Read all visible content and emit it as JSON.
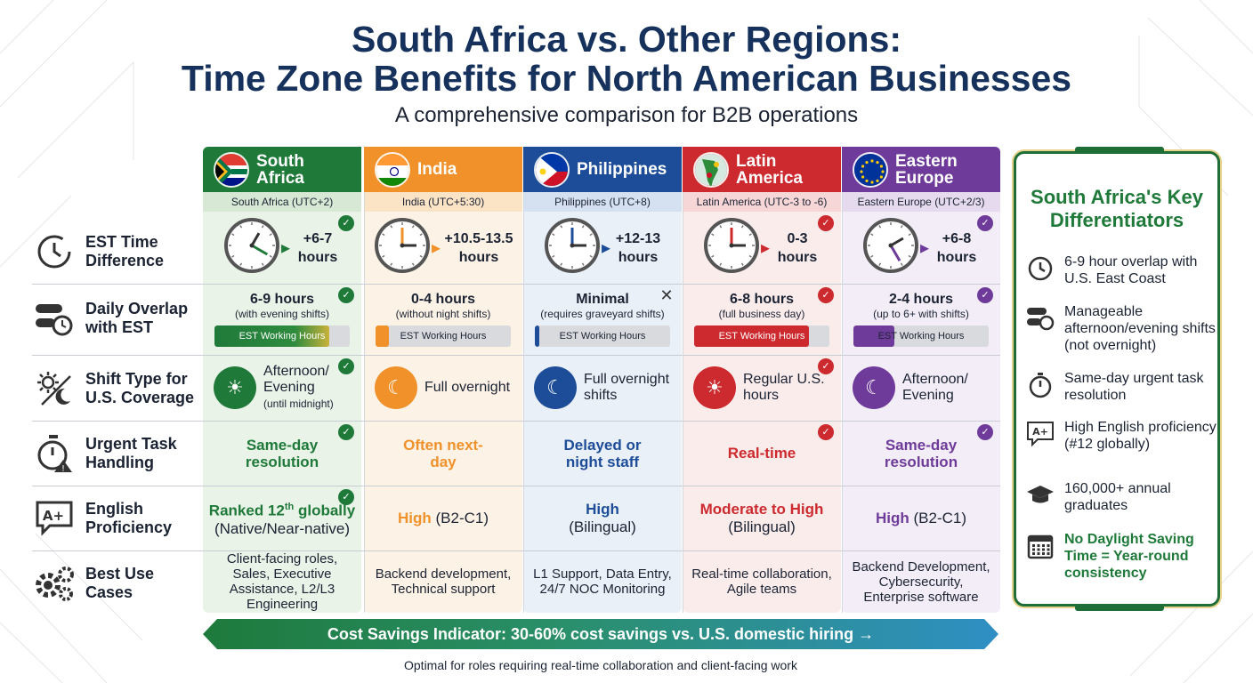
{
  "title_line1": "South Africa vs. Other Regions:",
  "title_line2": "Time Zone Benefits for North American Businesses",
  "subtitle": "A comprehensive comparison for B2B operations",
  "rows": {
    "est": "EST Time Difference",
    "overlap": "Daily Overlap with EST",
    "shift": "Shift Type for U.S. Coverage",
    "urgent": "Urgent Task Handling",
    "english": "English Proficiency",
    "usecases": "Best Use Cases"
  },
  "regions": [
    {
      "name": "South Africa",
      "sub": "South Africa (UTC+2)",
      "color": "#1f7a3a",
      "light": "#eaf3e8",
      "est": "+6-7 hours",
      "overlap_main": "6-9 hours",
      "overlap_note": "(with evening shifts)",
      "bar_label": "EST Working Hours",
      "bar_fill": 0.85,
      "shift_main": "Afternoon/ Evening",
      "shift_note": "(until midnight)",
      "urgent": "Same-day resolution",
      "english_main": "Ranked 12",
      "english_sup": "th",
      "english_tail": " globally",
      "english_note": "(Native/Near-native)",
      "usecases": "Client-facing roles, Sales, Executive Assistance, L2/L3 Engineering",
      "status": "check"
    },
    {
      "name": "India",
      "sub": "India (UTC+5:30)",
      "color": "#f0912a",
      "light": "#fdf2e6",
      "est": "+10.5-13.5 hours",
      "overlap_main": "0-4 hours",
      "overlap_note": "(without night shifts)",
      "bar_label": "EST Working Hours",
      "bar_fill": 0.1,
      "shift_main": "Full overnight",
      "shift_note": "",
      "urgent": "Often next-day",
      "english_main": "High",
      "english_tail": " (B2-C1)",
      "english_note": "",
      "usecases": "Backend development, Technical support",
      "status": "none"
    },
    {
      "name": "Philippines",
      "sub": "Philippines (UTC+8)",
      "color": "#1d4d98",
      "light": "#eaf0f8",
      "est": "+12-13 hours",
      "overlap_main": "Minimal",
      "overlap_note": "(requires graveyard shifts)",
      "bar_label": "EST Working Hours",
      "bar_fill": 0.03,
      "shift_main": "Full overnight shifts",
      "shift_note": "",
      "urgent": "Delayed or night staff",
      "english_main": "High",
      "english_tail": "",
      "english_note": "(Bilingual)",
      "usecases": "L1 Support, Data Entry, 24/7 NOC Monitoring",
      "status": "cross"
    },
    {
      "name": "Latin America",
      "sub": "Latin America (UTC-3 to -6)",
      "color": "#cc2a2e",
      "light": "#fbecec",
      "est": "0-3 hours",
      "overlap_main": "6-8 hours",
      "overlap_note": "(full business day)",
      "bar_label": "EST Working Hours",
      "bar_fill": 0.85,
      "shift_main": "Regular U.S. hours",
      "shift_note": "",
      "urgent": "Real-time",
      "english_main": "Moderate to High",
      "english_tail": "",
      "english_note": "(Bilingual)",
      "usecases": "Real-time collaboration, Agile teams",
      "status": "check"
    },
    {
      "name": "Eastern Europe",
      "sub": "Eastern Europe (UTC+2/3)",
      "color": "#6e3b9a",
      "light": "#f3edf7",
      "est": "+6-8 hours",
      "overlap_main": "2-4 hours",
      "overlap_note": "(up to 6+ with shifts)",
      "bar_label": "EST Working Hours",
      "bar_fill": 0.3,
      "shift_main": "Afternoon/ Evening",
      "shift_note": "",
      "urgent": "Same-day resolution",
      "english_main": "High",
      "english_tail": " (B2-C1)",
      "english_note": "",
      "usecases": "Backend Development, Cybersecurity, Enterprise software",
      "status": "check"
    }
  ],
  "banner": "Cost Savings Indicator: 30-60% cost savings vs. U.S. domestic hiring →",
  "footnote": "Optimal for roles requiring real-time collaboration and client-facing work",
  "panel": {
    "title": "South Africa's Key Differentiators",
    "items": [
      {
        "icon": "clock-icon",
        "text": "6-9 hour overlap with U.S. East Coast"
      },
      {
        "icon": "schedule-toggle-icon",
        "text": "Manageable afternoon/evening shifts (not overnight)"
      },
      {
        "icon": "stopwatch-icon",
        "text": "Same-day urgent task resolution"
      },
      {
        "icon": "language-icon",
        "text": "High English proficiency (#12 globally)"
      },
      {
        "icon": "graduation-cap-icon",
        "text": "160,000+ annual graduates"
      },
      {
        "icon": "calendar-icon",
        "text": "No Daylight Saving Time = Year-round consistency"
      }
    ]
  }
}
